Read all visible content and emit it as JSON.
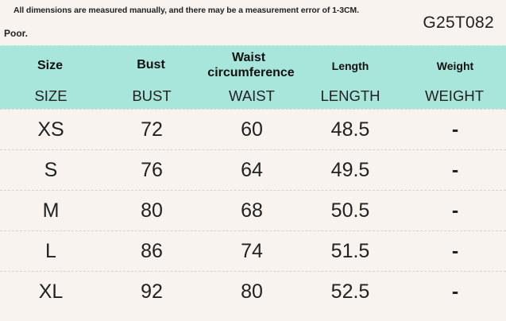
{
  "note": "All dimensions are measured manually, and there may be a measurement error of 1-3CM.",
  "product_code": "G25T082",
  "quality_label": "Poor.",
  "columns": [
    {
      "label": "Size",
      "sub": "SIZE"
    },
    {
      "label": "Bust",
      "sub": "BUST"
    },
    {
      "label": "Waist circumference",
      "label_line1": "Waist",
      "label_line2": "circumference",
      "sub": "WAIST"
    },
    {
      "label": "Length",
      "sub": "LENGTH"
    },
    {
      "label": "Weight",
      "sub": "WEIGHT"
    }
  ],
  "rows": [
    {
      "size": "XS",
      "bust": "72",
      "waist": "60",
      "length": "48.5",
      "weight": "-"
    },
    {
      "size": "S",
      "bust": "76",
      "waist": "64",
      "length": "49.5",
      "weight": "-"
    },
    {
      "size": "M",
      "bust": "80",
      "waist": "68",
      "length": "50.5",
      "weight": "-"
    },
    {
      "size": "L",
      "bust": "86",
      "waist": "74",
      "length": "51.5",
      "weight": "-"
    },
    {
      "size": "XL",
      "bust": "92",
      "waist": "80",
      "length": "52.5",
      "weight": "-"
    }
  ],
  "colors": {
    "header_bg": "#a8e6dc",
    "page_bg": "#f8f3ef"
  }
}
